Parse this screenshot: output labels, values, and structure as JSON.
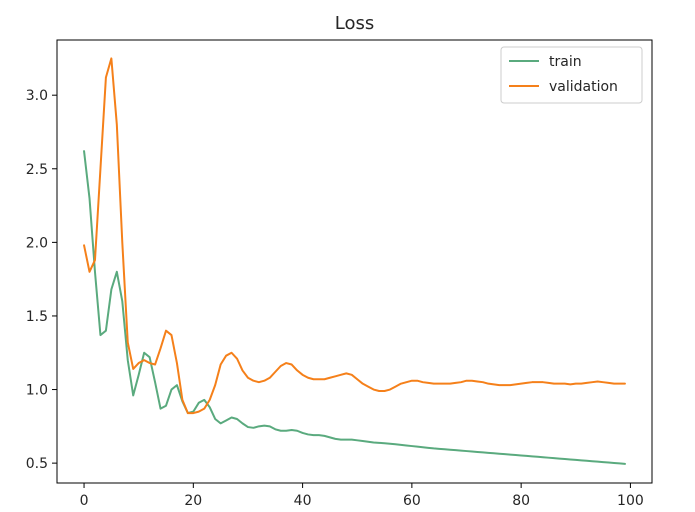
{
  "chart_data": {
    "type": "line",
    "title": "Loss",
    "xlabel": "",
    "ylabel": "",
    "xlim": [
      -4.95,
      103.95
    ],
    "ylim": [
      0.365,
      3.375
    ],
    "xticks": [
      0,
      20,
      40,
      60,
      80,
      100
    ],
    "yticks": [
      0.5,
      1.0,
      1.5,
      2.0,
      2.5,
      3.0
    ],
    "xtick_labels": [
      "0",
      "20",
      "40",
      "60",
      "80",
      "100"
    ],
    "ytick_labels": [
      "0.5",
      "1.0",
      "1.5",
      "2.0",
      "2.5",
      "3.0"
    ],
    "grid": false,
    "legend": {
      "position": "top-right",
      "entries": [
        "train",
        "validation"
      ]
    },
    "series": [
      {
        "name": "train",
        "color": "#5aaa7e",
        "x": [
          0,
          1,
          2,
          3,
          4,
          5,
          6,
          7,
          8,
          9,
          10,
          11,
          12,
          13,
          14,
          15,
          16,
          17,
          18,
          19,
          20,
          21,
          22,
          23,
          24,
          25,
          26,
          27,
          28,
          29,
          30,
          31,
          32,
          33,
          34,
          35,
          36,
          37,
          38,
          39,
          40,
          41,
          42,
          43,
          44,
          45,
          46,
          47,
          48,
          49,
          50,
          51,
          52,
          53,
          54,
          55,
          56,
          57,
          58,
          59,
          60,
          61,
          62,
          63,
          64,
          65,
          66,
          67,
          68,
          69,
          70,
          71,
          72,
          73,
          74,
          75,
          76,
          77,
          78,
          79,
          80,
          81,
          82,
          83,
          84,
          85,
          86,
          87,
          88,
          89,
          90,
          91,
          92,
          93,
          94,
          95,
          96,
          97,
          98,
          99
        ],
        "values": [
          2.62,
          2.3,
          1.8,
          1.37,
          1.4,
          1.68,
          1.8,
          1.6,
          1.2,
          0.96,
          1.1,
          1.25,
          1.22,
          1.05,
          0.87,
          0.89,
          1.0,
          1.03,
          0.92,
          0.84,
          0.85,
          0.91,
          0.93,
          0.88,
          0.8,
          0.77,
          0.79,
          0.81,
          0.8,
          0.77,
          0.745,
          0.74,
          0.75,
          0.755,
          0.75,
          0.73,
          0.72,
          0.72,
          0.725,
          0.72,
          0.705,
          0.695,
          0.69,
          0.69,
          0.685,
          0.675,
          0.665,
          0.66,
          0.66,
          0.66,
          0.655,
          0.65,
          0.645,
          0.64,
          0.638,
          0.635,
          0.632,
          0.628,
          0.624,
          0.62,
          0.616,
          0.612,
          0.608,
          0.604,
          0.6,
          0.597,
          0.594,
          0.591,
          0.588,
          0.585,
          0.582,
          0.579,
          0.576,
          0.573,
          0.57,
          0.567,
          0.564,
          0.561,
          0.558,
          0.555,
          0.552,
          0.549,
          0.546,
          0.543,
          0.54,
          0.537,
          0.534,
          0.531,
          0.528,
          0.525,
          0.522,
          0.519,
          0.516,
          0.513,
          0.51,
          0.507,
          0.504,
          0.501,
          0.498,
          0.495
        ]
      },
      {
        "name": "validation",
        "color": "#f5801a",
        "x": [
          0,
          1,
          2,
          3,
          4,
          5,
          6,
          7,
          8,
          9,
          10,
          11,
          12,
          13,
          14,
          15,
          16,
          17,
          18,
          19,
          20,
          21,
          22,
          23,
          24,
          25,
          26,
          27,
          28,
          29,
          30,
          31,
          32,
          33,
          34,
          35,
          36,
          37,
          38,
          39,
          40,
          41,
          42,
          43,
          44,
          45,
          46,
          47,
          48,
          49,
          50,
          51,
          52,
          53,
          54,
          55,
          56,
          57,
          58,
          59,
          60,
          61,
          62,
          63,
          64,
          65,
          66,
          67,
          68,
          69,
          70,
          71,
          72,
          73,
          74,
          75,
          76,
          77,
          78,
          79,
          80,
          81,
          82,
          83,
          84,
          85,
          86,
          87,
          88,
          89,
          90,
          91,
          92,
          93,
          94,
          95,
          96,
          97,
          98,
          99
        ],
        "values": [
          1.98,
          1.8,
          1.88,
          2.5,
          3.12,
          3.25,
          2.8,
          2.0,
          1.32,
          1.14,
          1.18,
          1.2,
          1.18,
          1.17,
          1.28,
          1.4,
          1.37,
          1.18,
          0.93,
          0.84,
          0.84,
          0.85,
          0.87,
          0.93,
          1.03,
          1.17,
          1.23,
          1.25,
          1.21,
          1.13,
          1.08,
          1.06,
          1.05,
          1.06,
          1.08,
          1.12,
          1.16,
          1.18,
          1.17,
          1.13,
          1.1,
          1.08,
          1.07,
          1.07,
          1.07,
          1.08,
          1.09,
          1.1,
          1.11,
          1.1,
          1.07,
          1.04,
          1.02,
          1.0,
          0.99,
          0.99,
          1.0,
          1.02,
          1.04,
          1.05,
          1.06,
          1.06,
          1.05,
          1.045,
          1.04,
          1.04,
          1.04,
          1.04,
          1.045,
          1.05,
          1.06,
          1.06,
          1.055,
          1.05,
          1.04,
          1.035,
          1.03,
          1.03,
          1.03,
          1.035,
          1.04,
          1.045,
          1.05,
          1.05,
          1.05,
          1.045,
          1.04,
          1.04,
          1.04,
          1.035,
          1.04,
          1.04,
          1.045,
          1.05,
          1.055,
          1.05,
          1.045,
          1.04,
          1.04,
          1.04
        ]
      }
    ]
  }
}
